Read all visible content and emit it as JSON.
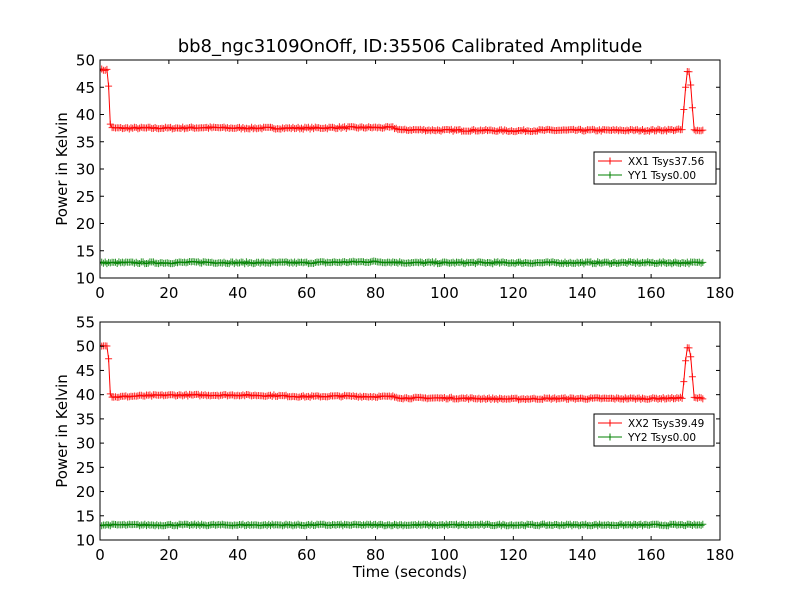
{
  "title": "bb8_ngc3109OnOff, ID:35506 Calibrated Amplitude",
  "colors": {
    "xx": "#ff0000",
    "yy": "#008000",
    "background": "#ffffff",
    "axes": "#000000"
  },
  "chart_data": [
    {
      "type": "line",
      "title": "bb8_ngc3109OnOff, ID:35506 Calibrated Amplitude",
      "xlabel": "",
      "ylabel": "Power in Kelvin",
      "xlim": [
        0,
        180
      ],
      "ylim": [
        10,
        50
      ],
      "xticks": [
        0,
        20,
        40,
        60,
        80,
        100,
        120,
        140,
        160,
        180
      ],
      "yticks": [
        10,
        15,
        20,
        25,
        30,
        35,
        40,
        45,
        50
      ],
      "grid": false,
      "legend_position": "center-right",
      "series": [
        {
          "name": "XX1 Tsys37.56",
          "color": "#ff0000",
          "marker": "+",
          "x": [
            0,
            2,
            2.5,
            3,
            3.5,
            4,
            10,
            20,
            30,
            40,
            50,
            60,
            70,
            80,
            85,
            88,
            90,
            100,
            110,
            120,
            130,
            140,
            150,
            160,
            169,
            169.8,
            170.3,
            171,
            171.8,
            172.3,
            173,
            175
          ],
          "y": [
            48.2,
            48.2,
            45.2,
            38.3,
            37.5,
            37.5,
            37.5,
            37.5,
            37.6,
            37.5,
            37.5,
            37.5,
            37.6,
            37.6,
            37.6,
            37.1,
            37.2,
            37.1,
            37.1,
            37.0,
            37.1,
            37.1,
            37.1,
            37.1,
            37.2,
            43.0,
            47.8,
            47.8,
            44.2,
            37.2,
            37.1,
            37.1
          ]
        },
        {
          "name": "YY1 Tsys0.00",
          "color": "#008000",
          "marker": "+",
          "x": [
            0,
            10,
            20,
            30,
            40,
            50,
            60,
            70,
            80,
            85,
            90,
            100,
            110,
            120,
            130,
            140,
            150,
            160,
            170,
            175
          ],
          "y": [
            12.8,
            12.8,
            12.8,
            12.9,
            12.8,
            12.8,
            12.8,
            12.9,
            13.0,
            12.9,
            12.8,
            12.8,
            12.8,
            12.8,
            12.8,
            12.8,
            12.8,
            12.8,
            12.8,
            12.8
          ]
        }
      ]
    },
    {
      "type": "line",
      "title": "",
      "xlabel": "Time (seconds)",
      "ylabel": "Power in Kelvin",
      "xlim": [
        0,
        180
      ],
      "ylim": [
        10,
        55
      ],
      "xticks": [
        0,
        20,
        40,
        60,
        80,
        100,
        120,
        140,
        160,
        180
      ],
      "yticks": [
        10,
        15,
        20,
        25,
        30,
        35,
        40,
        45,
        50,
        55
      ],
      "grid": false,
      "legend_position": "center-right",
      "series": [
        {
          "name": "XX2 Tsys39.49",
          "color": "#ff0000",
          "marker": "+",
          "x": [
            0,
            2,
            2.5,
            3,
            3.5,
            4,
            10,
            20,
            30,
            40,
            50,
            60,
            70,
            80,
            85,
            88,
            90,
            100,
            110,
            120,
            130,
            140,
            150,
            160,
            169,
            169.8,
            170.3,
            171,
            171.8,
            172.3,
            173,
            175
          ],
          "y": [
            50.2,
            50.2,
            47.4,
            40.3,
            39.6,
            39.5,
            39.7,
            39.9,
            39.9,
            39.9,
            39.8,
            39.6,
            39.7,
            39.6,
            39.6,
            39.3,
            39.3,
            39.3,
            39.2,
            39.1,
            39.2,
            39.2,
            39.2,
            39.2,
            39.3,
            45.0,
            49.7,
            49.7,
            46.5,
            39.4,
            39.3,
            39.3
          ]
        },
        {
          "name": "YY2 Tsys0.00",
          "color": "#008000",
          "marker": "+",
          "x": [
            0,
            10,
            20,
            30,
            40,
            50,
            60,
            70,
            80,
            90,
            100,
            110,
            120,
            130,
            140,
            150,
            160,
            170,
            175
          ],
          "y": [
            13.1,
            13.1,
            13.1,
            13.1,
            13.1,
            13.1,
            13.1,
            13.1,
            13.1,
            13.1,
            13.1,
            13.1,
            13.1,
            13.1,
            13.1,
            13.1,
            13.1,
            13.1,
            13.1
          ]
        }
      ]
    }
  ]
}
